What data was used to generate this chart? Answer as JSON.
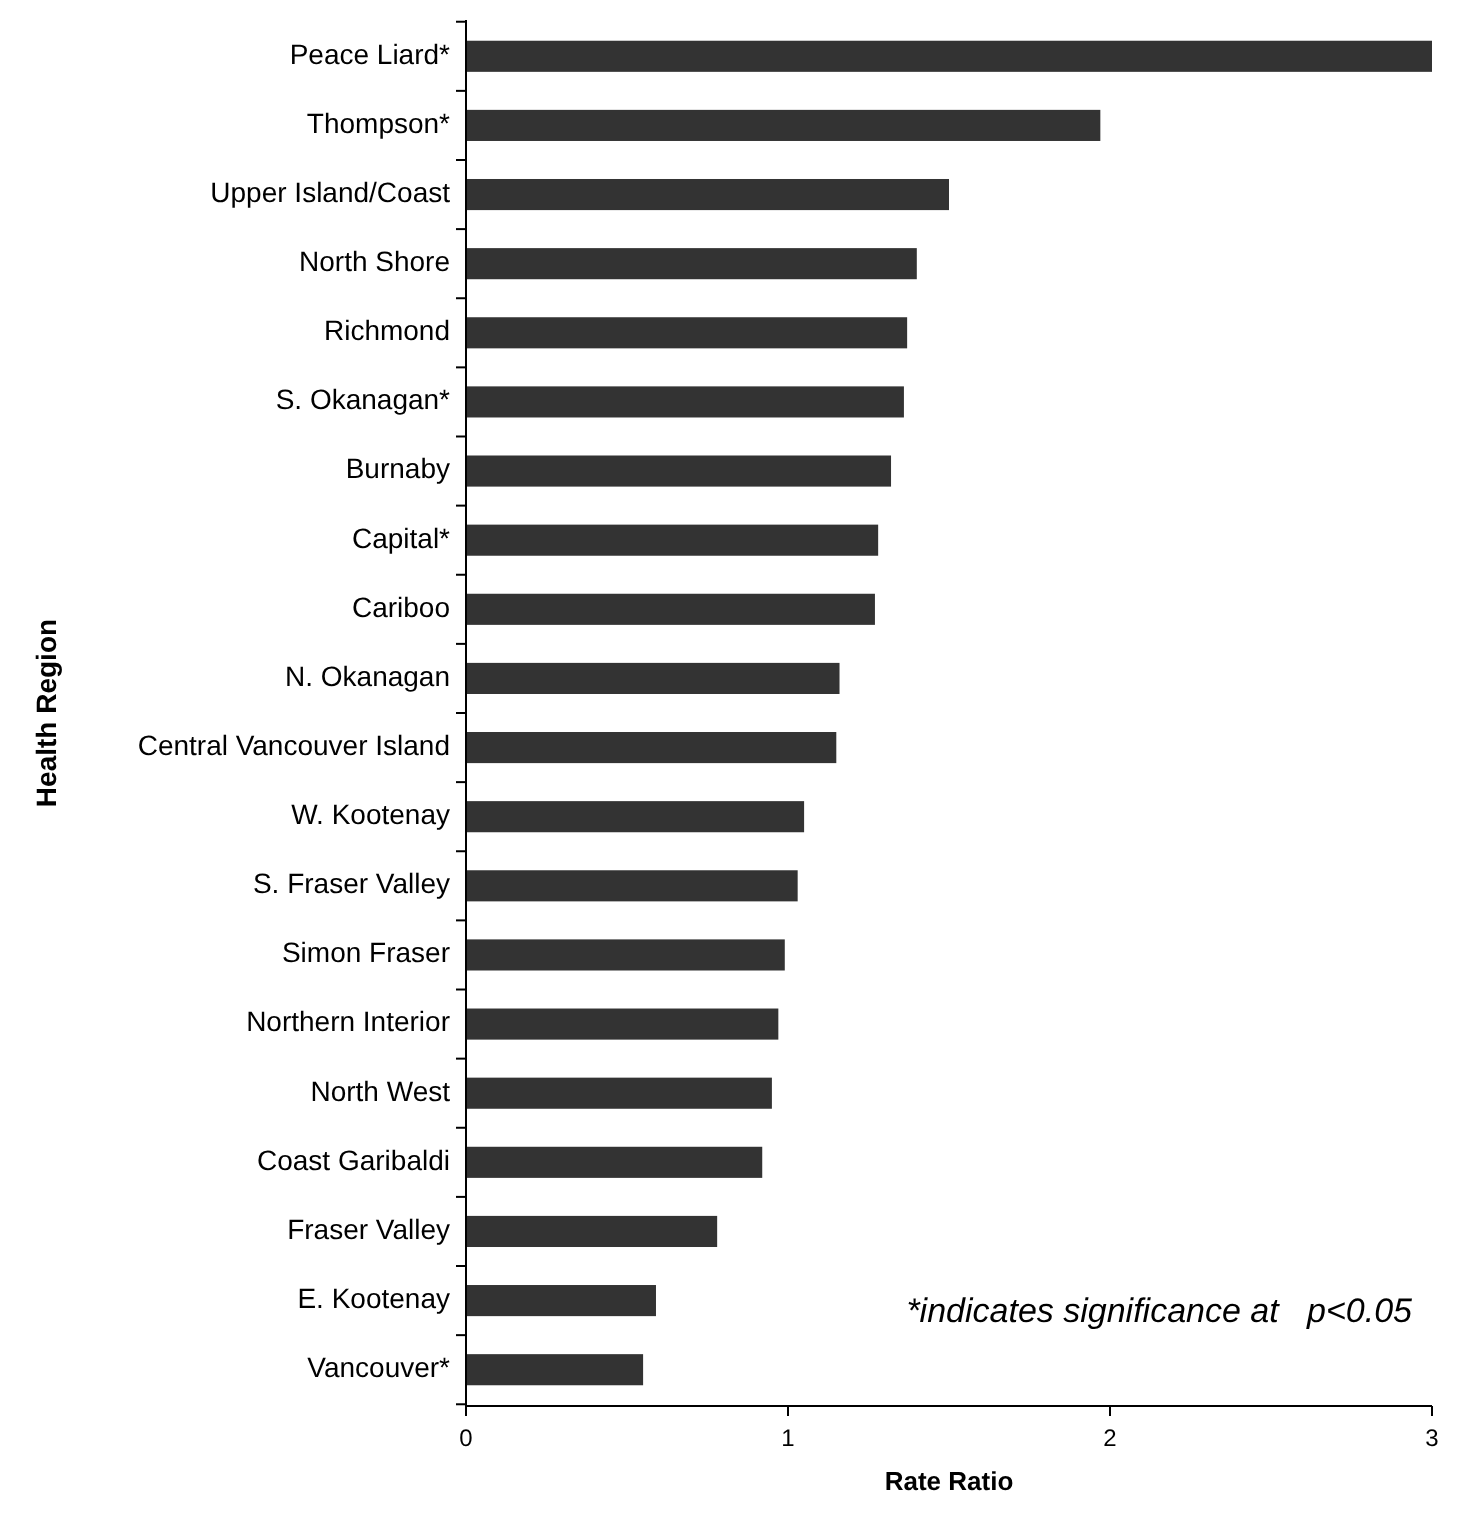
{
  "chart_data": {
    "type": "bar",
    "orientation": "horizontal",
    "xlabel": "Rate Ratio",
    "ylabel": "Health Region",
    "categories": [
      "Peace Liard*",
      "Thompson*",
      "Upper Island/Coast",
      "North Shore",
      "Richmond",
      "S. Okanagan*",
      "Burnaby",
      "Capital*",
      "Cariboo",
      "N. Okanagan",
      "Central Vancouver Island",
      "W. Kootenay",
      "S. Fraser Valley",
      "Simon Fraser",
      "Northern Interior",
      "North West",
      "Coast Garibaldi",
      "Fraser Valley",
      "E. Kootenay",
      "Vancouver*"
    ],
    "values": [
      3,
      1.97,
      1.5,
      1.4,
      1.37,
      1.36,
      1.32,
      1.28,
      1.27,
      1.16,
      1.15,
      1.05,
      1.03,
      0.99,
      0.97,
      0.95,
      0.92,
      0.78,
      0.59,
      0.55
    ],
    "color": "#333333",
    "xlim": [
      0,
      3
    ],
    "xticks": [
      0,
      1,
      2,
      3
    ],
    "annotations": [
      "*indicates significance at   p<0.05"
    ]
  }
}
